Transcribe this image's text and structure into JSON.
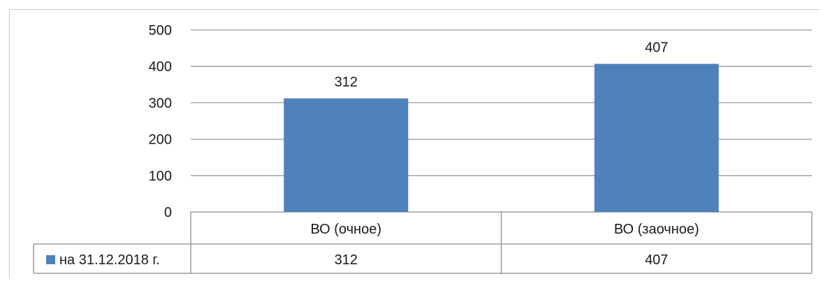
{
  "chart_data": {
    "type": "bar",
    "categories": [
      "ВО (очное)",
      "ВО (заочное)"
    ],
    "series": [
      {
        "name": "на 31.12.2018 г.",
        "values": [
          312,
          407
        ],
        "color": "#4f81bd"
      }
    ],
    "y_ticks": [
      "0",
      "100",
      "200",
      "300",
      "400",
      "500"
    ],
    "ylim": [
      0,
      500
    ],
    "grid": true,
    "data_labels": [
      "312",
      "407"
    ],
    "legend": "data-table-left",
    "data_table": {
      "legend_label": "на 31.12.2018 г.",
      "cells": [
        "312",
        "407"
      ]
    }
  }
}
